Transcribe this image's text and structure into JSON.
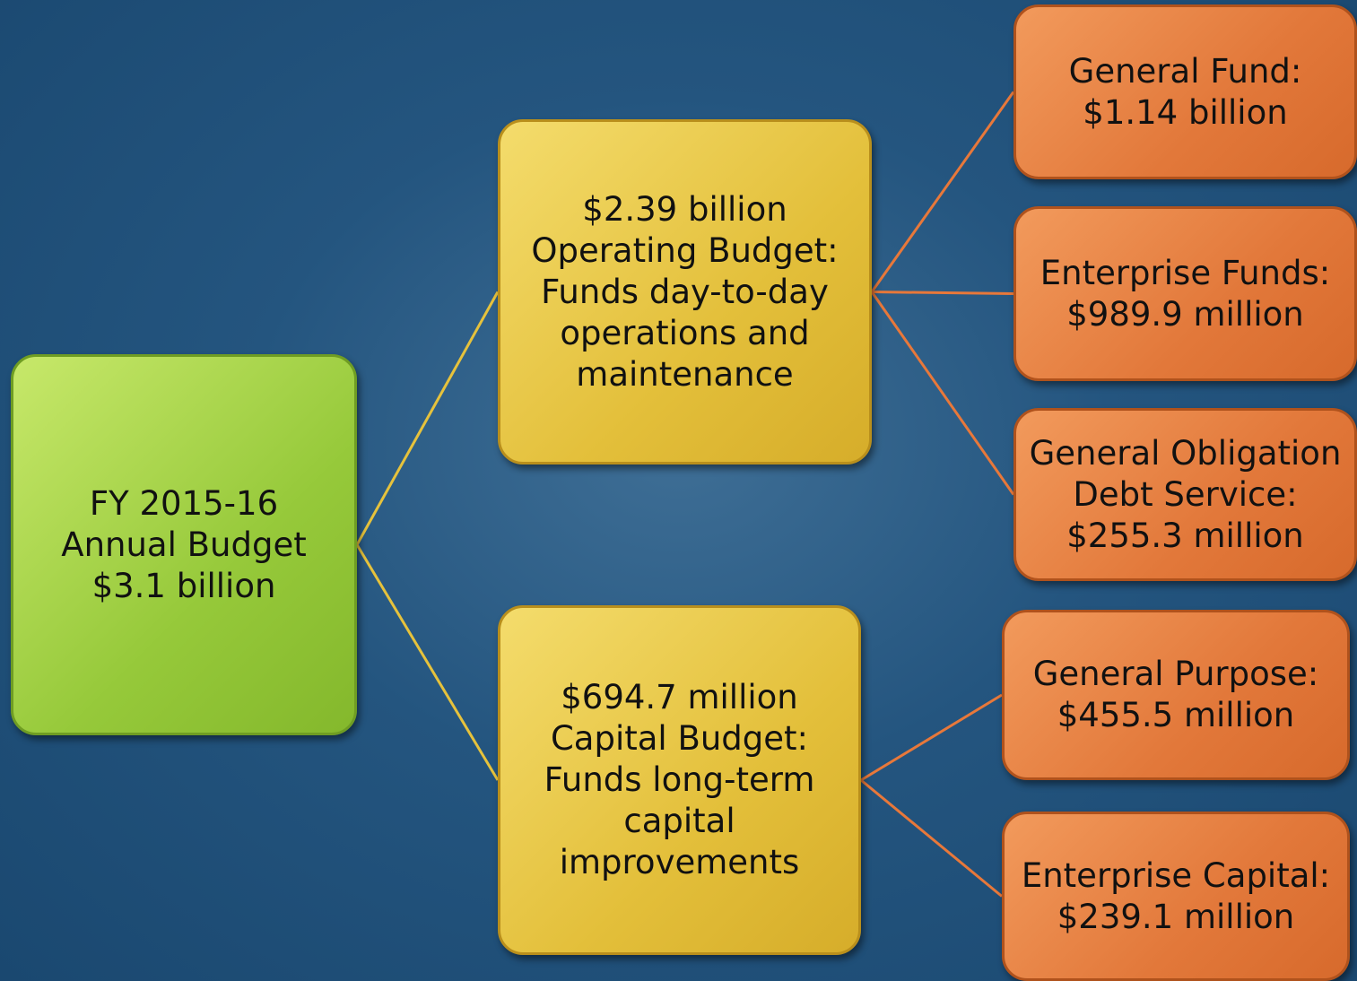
{
  "nodes": [
    {
      "lines": [
        "FY 2015-16",
        "Annual Budget",
        "$3.1 billion"
      ]
    },
    {
      "lines": [
        "$2.39 billion",
        "Operating Budget:",
        "Funds day-to-day",
        "operations and",
        "maintenance"
      ]
    },
    {
      "lines": [
        "$694.7 million",
        "Capital Budget:",
        "Funds long-term",
        "capital",
        "improvements"
      ]
    },
    {
      "lines": [
        "General Fund:",
        "$1.14 billion"
      ]
    },
    {
      "lines": [
        "Enterprise Funds:",
        "$989.9 million"
      ]
    },
    {
      "lines": [
        "General Obligation",
        "Debt Service:",
        "$255.3 million"
      ]
    },
    {
      "lines": [
        "General Purpose:",
        "$455.5 million"
      ]
    },
    {
      "lines": [
        "Enterprise Capital:",
        "$239.1 million"
      ]
    }
  ]
}
